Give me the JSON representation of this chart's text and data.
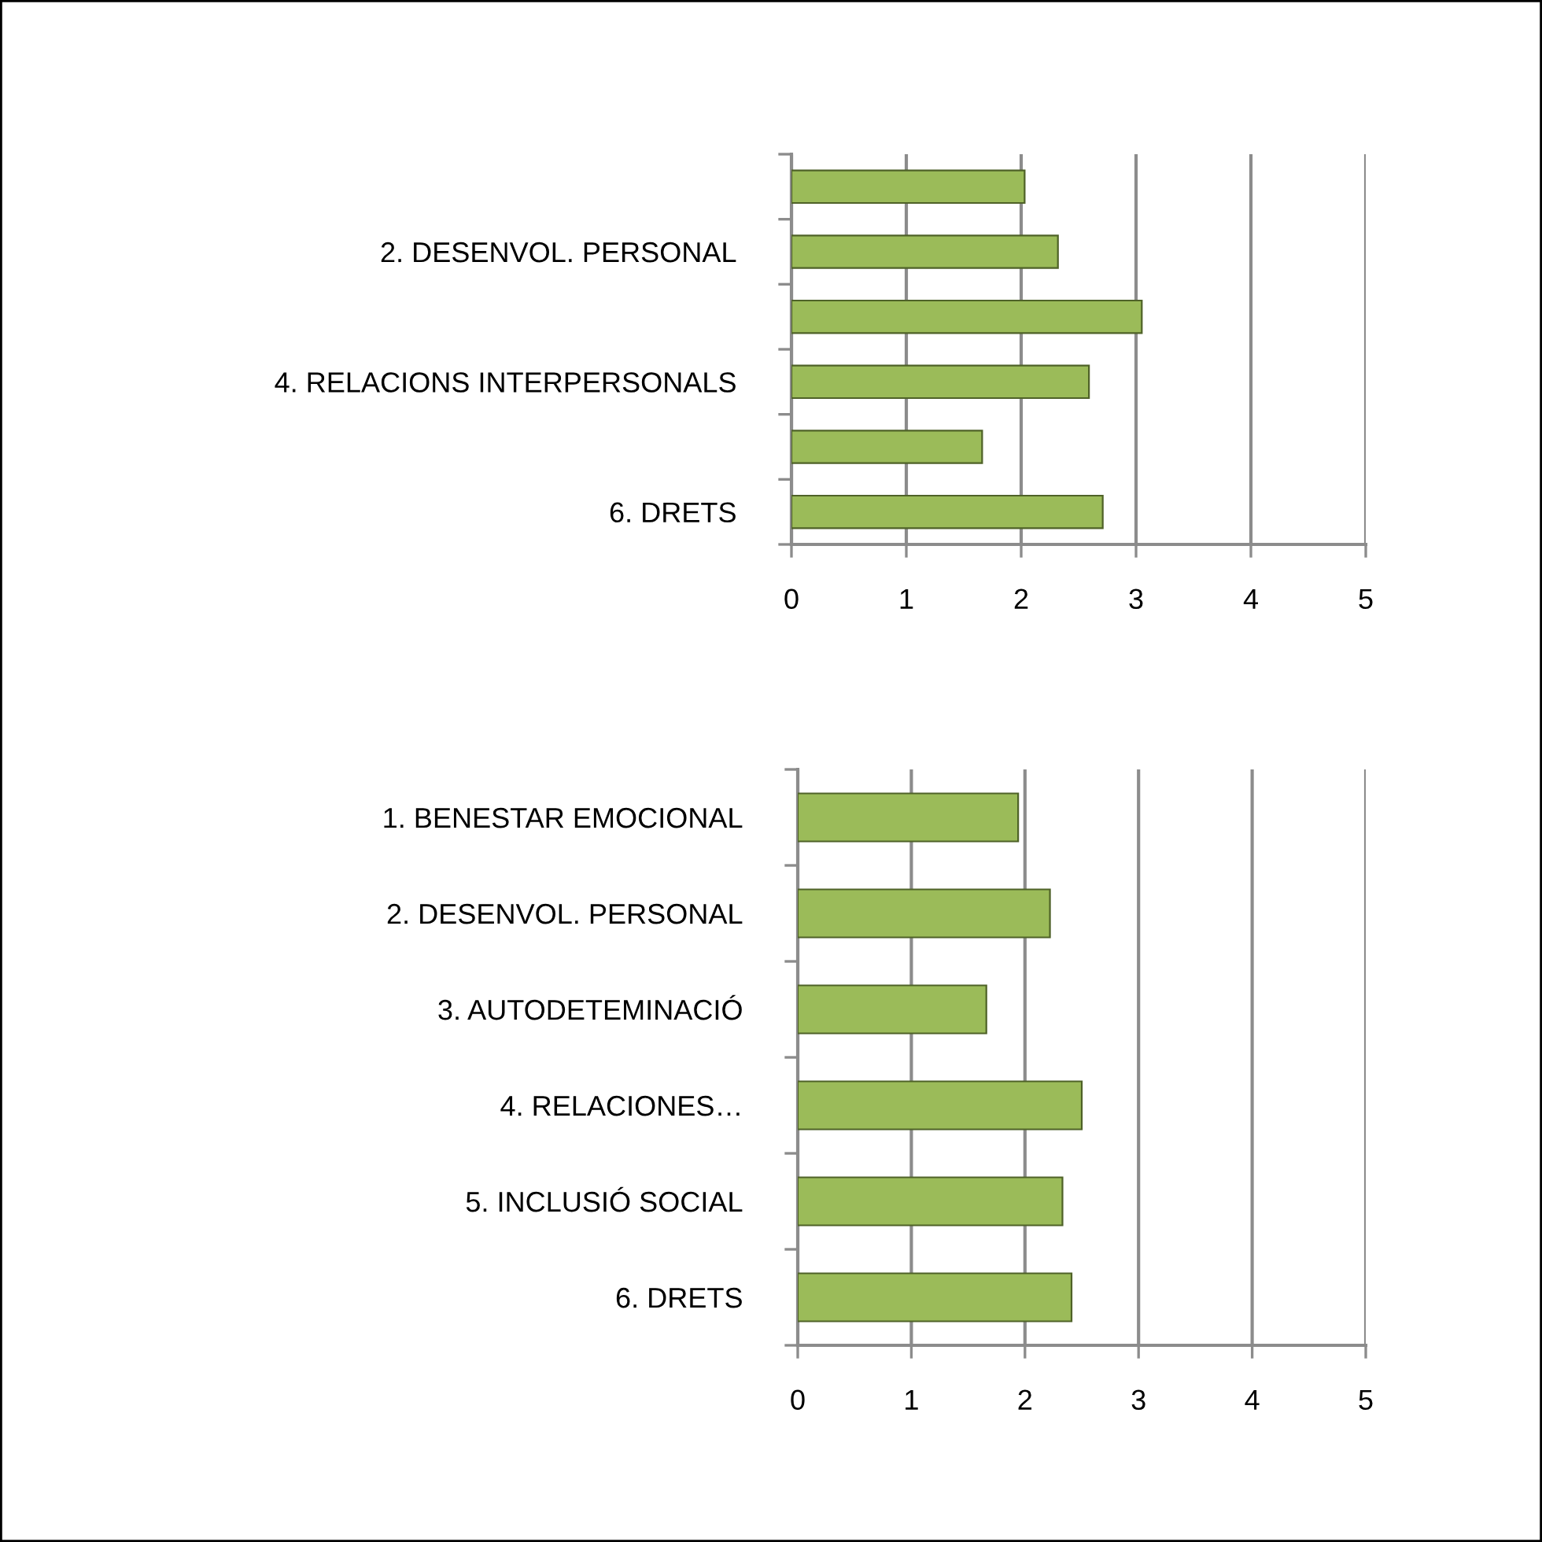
{
  "chart_data": [
    {
      "type": "bar",
      "orientation": "horizontal",
      "categories": [
        null,
        "2. DESENVOL. PERSONAL",
        null,
        "4. RELACIONS INTERPERSONALS",
        null,
        "6. DRETS"
      ],
      "values": [
        2.03,
        2.32,
        3.05,
        2.59,
        1.66,
        2.71
      ],
      "color": "#9bbb59",
      "xlim": [
        0,
        5
      ],
      "xticks": [
        0,
        1,
        2,
        3,
        4,
        5
      ],
      "grid": "x"
    },
    {
      "type": "bar",
      "orientation": "horizontal",
      "categories": [
        "1. BENESTAR EMOCIONAL",
        "2. DESENVOL. PERSONAL",
        "3. AUTODETEMINACIÓ",
        "4. RELACIONES…",
        "5. INCLUSIÓ SOCIAL",
        "6. DRETS"
      ],
      "values": [
        1.94,
        2.22,
        1.66,
        2.5,
        2.33,
        2.41
      ],
      "color": "#9bbb59",
      "xlim": [
        0,
        5
      ],
      "xticks": [
        0,
        1,
        2,
        3,
        4,
        5
      ],
      "grid": "x"
    }
  ]
}
